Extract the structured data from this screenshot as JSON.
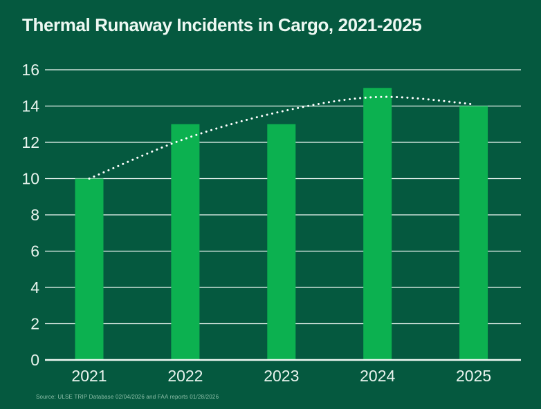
{
  "title": "Thermal Runaway Incidents in Cargo, 2021-2025",
  "source_note": "Source: ULSE TRIP Database 02/04/2026 and FAA reports 01/28/2026",
  "colors": {
    "background": "#05593F",
    "bar": "#0CB150",
    "grid": "#F2FAF5",
    "axis_text": "#E9F4EE",
    "title_text": "#EDF8F2",
    "trend_dots": "#FFFFFF",
    "source_text": "#8FC0AA"
  },
  "chart_data": {
    "type": "bar",
    "title": "Thermal Runaway Incidents in Cargo, 2021-2025",
    "categories": [
      "2021",
      "2022",
      "2023",
      "2024",
      "2025"
    ],
    "values": [
      10,
      13,
      13,
      15,
      14
    ],
    "trend_line": {
      "style": "dotted-curve",
      "color": "#FFFFFF",
      "values": [
        10,
        12.2,
        13.7,
        14.5,
        14.1
      ]
    },
    "xlabel": "",
    "ylabel": "",
    "ylim": [
      0,
      16
    ],
    "yticks": [
      0,
      2,
      4,
      6,
      8,
      10,
      12,
      14,
      16
    ],
    "grid": true,
    "legend": false
  }
}
